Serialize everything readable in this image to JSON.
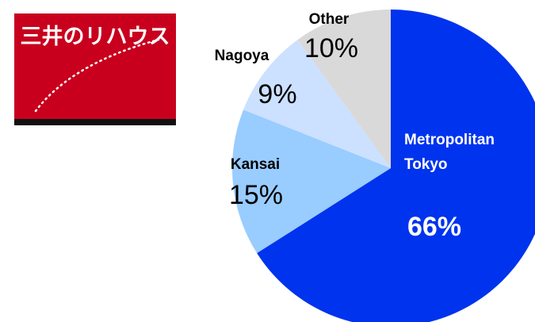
{
  "logo": {
    "text": "三井のリハウス"
  },
  "chart_data": {
    "type": "pie",
    "categories": [
      "Metropolitan Tokyo",
      "Kansai",
      "Nagoya",
      "Other"
    ],
    "values": [
      66,
      15,
      9,
      10
    ],
    "value_labels": [
      "66%",
      "15%",
      "9%",
      "10%"
    ],
    "colors": [
      "#0033ee",
      "#99ccff",
      "#cce0ff",
      "#d9d9d9"
    ]
  }
}
